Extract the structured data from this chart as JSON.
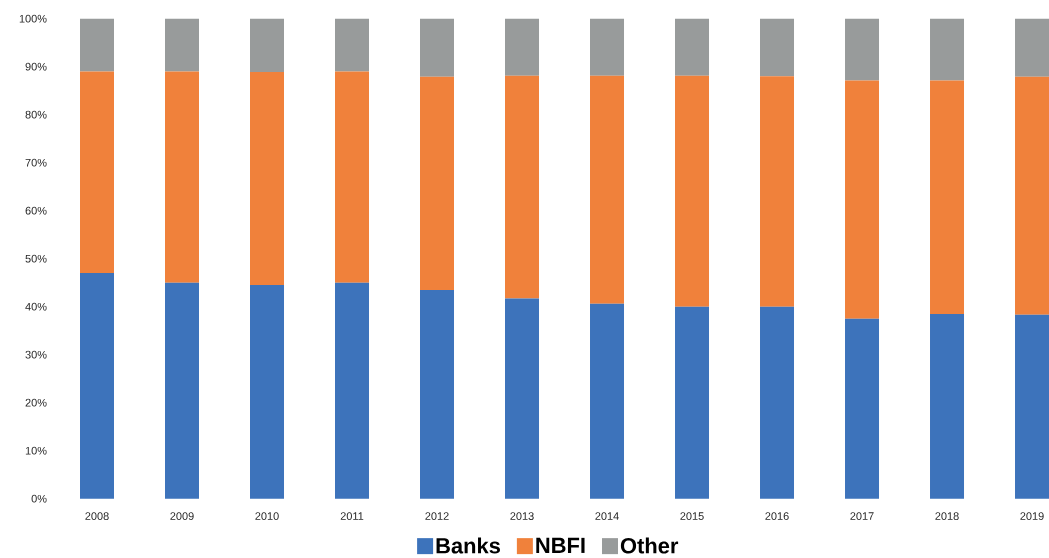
{
  "chart_data": {
    "type": "bar",
    "stacked": true,
    "categories": [
      "2008",
      "2009",
      "2010",
      "2011",
      "2012",
      "2013",
      "2014",
      "2015",
      "2016",
      "2017",
      "2018",
      "2019"
    ],
    "series": [
      {
        "name": "Banks",
        "color": "#3d73bb",
        "values": [
          47,
          45,
          44.5,
          45,
          43.5,
          41.7,
          40.6,
          40,
          40,
          37.5,
          38.5,
          38.3
        ]
      },
      {
        "name": "NBFI",
        "color": "#f0813b",
        "values": [
          42,
          44,
          44.4,
          44,
          44.4,
          46.4,
          47.5,
          48.1,
          48,
          49.6,
          48.6,
          49.6
        ]
      },
      {
        "name": "Other",
        "color": "#989b9b",
        "values": [
          11,
          11,
          11.1,
          11,
          12.1,
          11.9,
          11.9,
          11.9,
          12,
          12.9,
          12.9,
          12.1
        ]
      }
    ],
    "ylim": [
      0,
      100
    ],
    "yticks": [
      {
        "value": 0,
        "label": "0%"
      },
      {
        "value": 10,
        "label": "10%"
      },
      {
        "value": 20,
        "label": "20%"
      },
      {
        "value": 30,
        "label": "30%"
      },
      {
        "value": 40,
        "label": "40%"
      },
      {
        "value": 50,
        "label": "50%"
      },
      {
        "value": 60,
        "label": "60%"
      },
      {
        "value": 70,
        "label": "70%"
      },
      {
        "value": 80,
        "label": "80%"
      },
      {
        "value": 90,
        "label": "90%"
      },
      {
        "value": 100,
        "label": "100%"
      }
    ],
    "legend": "bottom"
  }
}
